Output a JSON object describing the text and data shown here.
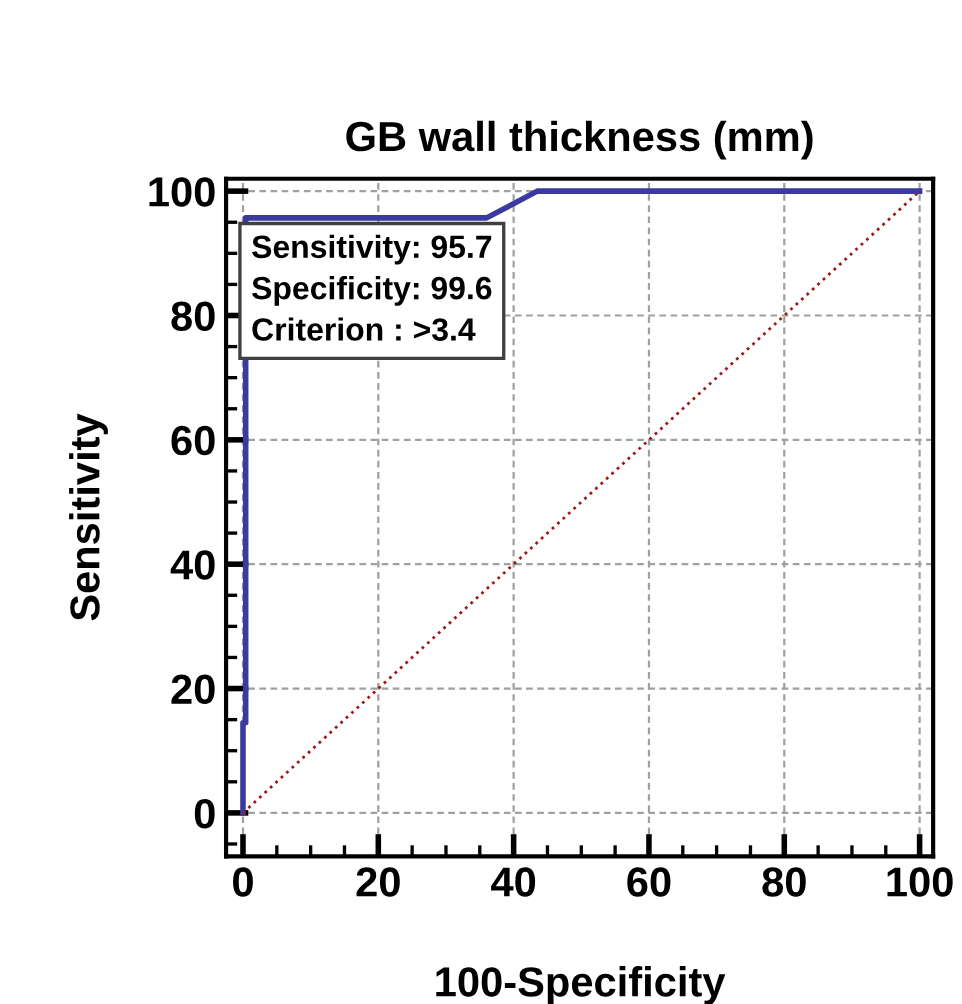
{
  "chart_data": {
    "type": "line",
    "title": "GB wall thickness (mm)",
    "xlabel": "100-Specificity",
    "ylabel": "Sensitivity",
    "series": [
      {
        "color": "#3a3aa0",
        "x": [
          0,
          0,
          0.4,
          0.4,
          36,
          43.5,
          100
        ],
        "values": [
          0,
          14.5,
          14.5,
          95.7,
          95.7,
          100,
          100
        ],
        "line_style": "solid"
      },
      {
        "type": "line",
        "color": "#a01818",
        "x": [
          0,
          100
        ],
        "values": [
          0,
          100
        ],
        "line_style": "dotted"
      }
    ],
    "annotations": [
      "Sensitivity: 95.7",
      "Specificity: 99.6",
      "Criterion : >3.4"
    ],
    "xlim": [
      -2.5,
      102
    ],
    "ylim": [
      -7,
      102
    ],
    "xticks": [
      0,
      20,
      40,
      60,
      80,
      100
    ],
    "yticks": [
      0,
      20,
      40,
      60,
      80,
      100
    ],
    "grid": true,
    "legend": false
  }
}
